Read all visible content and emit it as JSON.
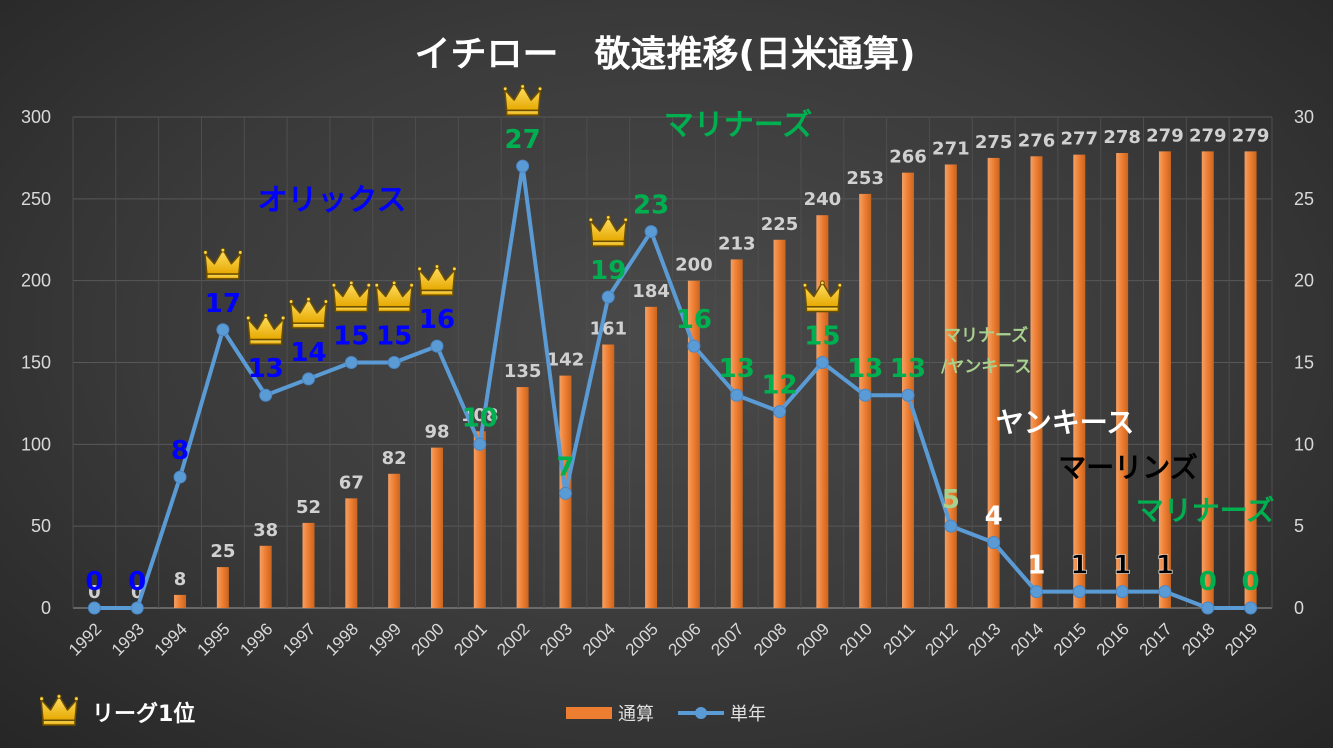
{
  "chart_data": {
    "type": "bar+line",
    "title": "イチロー　敬遠推移(日米通算)",
    "categories": [
      "1992",
      "1993",
      "1994",
      "1995",
      "1996",
      "1997",
      "1998",
      "1999",
      "2000",
      "2001",
      "2002",
      "2003",
      "2004",
      "2005",
      "2006",
      "2007",
      "2008",
      "2009",
      "2010",
      "2011",
      "2012",
      "2013",
      "2014",
      "2015",
      "2016",
      "2017",
      "2018",
      "2019"
    ],
    "series": [
      {
        "name": "通算",
        "type": "bar",
        "axis": "left",
        "color": "#ed7d31",
        "values": [
          0,
          0,
          8,
          25,
          38,
          52,
          67,
          82,
          98,
          108,
          135,
          142,
          161,
          184,
          200,
          213,
          225,
          240,
          253,
          266,
          271,
          275,
          276,
          277,
          278,
          279,
          279,
          279
        ]
      },
      {
        "name": "単年",
        "type": "line",
        "axis": "right",
        "color": "#5b9bd5",
        "values": [
          0,
          0,
          8,
          17,
          13,
          14,
          15,
          15,
          16,
          10,
          27,
          7,
          19,
          23,
          16,
          13,
          12,
          15,
          13,
          13,
          5,
          4,
          1,
          1,
          1,
          1,
          0,
          0
        ]
      }
    ],
    "left_axis": {
      "ylim": [
        0,
        300
      ],
      "ticks": [
        0,
        50,
        100,
        150,
        200,
        250,
        300
      ]
    },
    "right_axis": {
      "ylim": [
        0,
        30
      ],
      "ticks": [
        0,
        5,
        10,
        15,
        20,
        25,
        30
      ]
    },
    "label_colors": [
      "#0000ff",
      "#0000ff",
      "#0000ff",
      "#0000ff",
      "#0000ff",
      "#0000ff",
      "#0000ff",
      "#0000ff",
      "#0000ff",
      "#00b050",
      "#00b050",
      "#00b050",
      "#00b050",
      "#00b050",
      "#00b050",
      "#00b050",
      "#00b050",
      "#00b050",
      "#00b050",
      "#00b050",
      "#a9d18e",
      "#ffffff",
      "#ffffff",
      "#000000",
      "#000000",
      "#000000",
      "#00b050",
      "#00b050"
    ],
    "league_leader_years": [
      "1995",
      "1996",
      "1997",
      "1998",
      "1999",
      "2000",
      "2002",
      "2004",
      "2009"
    ],
    "team_annotations": [
      {
        "text": "オリックス",
        "color": "#0000ff"
      },
      {
        "text": "マリナーズ",
        "color": "#00b050"
      },
      {
        "text": "マリナーズ",
        "color": "#a9d18e"
      },
      {
        "text": "/ヤンキース",
        "color": "#a9d18e"
      },
      {
        "text": "ヤンキース",
        "color": "#ffffff"
      },
      {
        "text": "マーリンズ",
        "color": "#000000"
      },
      {
        "text": "マリナーズ",
        "color": "#00b050"
      }
    ],
    "legend": {
      "crown_label": "リーグ1位",
      "items": [
        "通算",
        "単年"
      ],
      "position": "bottom"
    }
  }
}
